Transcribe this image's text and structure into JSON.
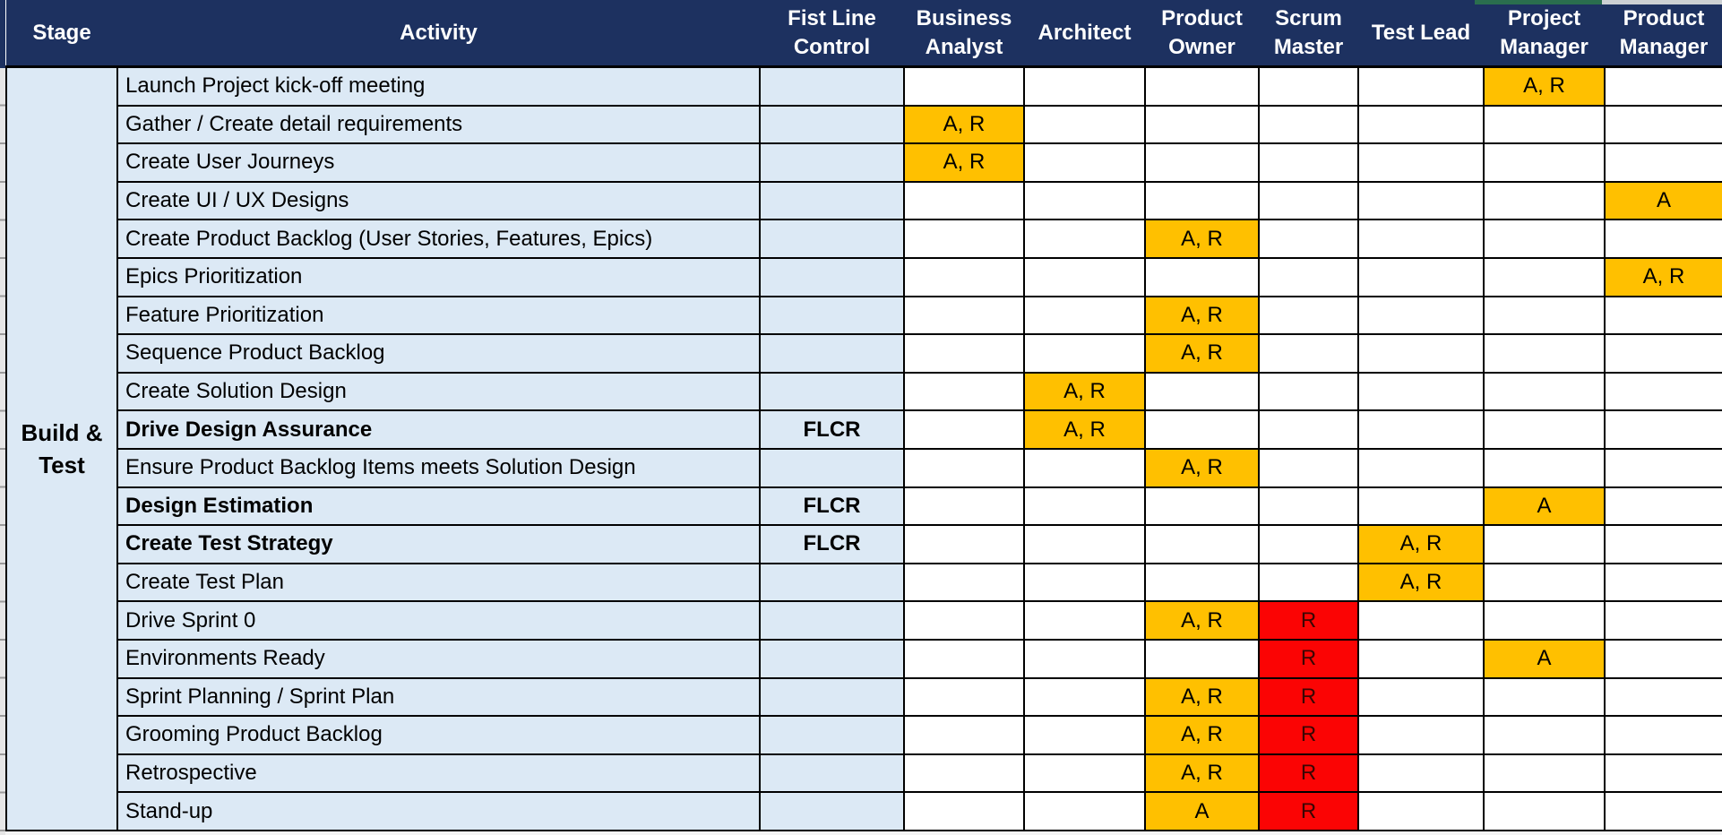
{
  "app": {
    "view": "raci-matrix-spreadsheet"
  },
  "colors": {
    "header_bg": "#1d3160",
    "header_text": "#ffffff",
    "row_tint": "#dce9f5",
    "gold": "#ffc000",
    "red": "#fb0404",
    "red_text": "#3a0603",
    "grid": "#000000",
    "selection_green": "#2a6e4e"
  },
  "table": {
    "header": {
      "stage": "Stage",
      "activity": "Activity",
      "roles": [
        "Fist Line Control",
        "Business Analyst",
        "Architect",
        "Product Owner",
        "Scrum Master",
        "Test Lead",
        "Project Manager",
        "Product Manager"
      ]
    },
    "role_keys": [
      "flc",
      "ba",
      "arch",
      "po",
      "sm",
      "tl",
      "pjm",
      "pdm"
    ],
    "stage_label": "Build &\nTest",
    "rows": [
      {
        "activity": "Launch Project kick-off meeting",
        "bold": false,
        "marks": {
          "pjm": {
            "text": "A, R",
            "bg": "gold"
          }
        }
      },
      {
        "activity": "Gather / Create detail requirements",
        "bold": false,
        "marks": {
          "ba": {
            "text": "A, R",
            "bg": "gold"
          }
        }
      },
      {
        "activity": "Create User Journeys",
        "bold": false,
        "marks": {
          "ba": {
            "text": "A, R",
            "bg": "gold"
          }
        }
      },
      {
        "activity": "Create UI / UX Designs",
        "bold": false,
        "marks": {
          "pdm": {
            "text": "A",
            "bg": "gold"
          }
        }
      },
      {
        "activity": "Create Product Backlog (User Stories, Features, Epics)",
        "bold": false,
        "marks": {
          "po": {
            "text": "A, R",
            "bg": "gold"
          }
        }
      },
      {
        "activity": "Epics Prioritization",
        "bold": false,
        "marks": {
          "pdm": {
            "text": "A, R",
            "bg": "gold"
          }
        }
      },
      {
        "activity": "Feature Prioritization",
        "bold": false,
        "marks": {
          "po": {
            "text": "A, R",
            "bg": "gold"
          }
        }
      },
      {
        "activity": "Sequence Product Backlog",
        "bold": false,
        "marks": {
          "po": {
            "text": "A, R",
            "bg": "gold"
          }
        }
      },
      {
        "activity": "Create Solution Design",
        "bold": false,
        "marks": {
          "arch": {
            "text": "A, R",
            "bg": "gold"
          }
        }
      },
      {
        "activity": "Drive Design Assurance",
        "bold": true,
        "marks": {
          "flc": {
            "text": "FLCR",
            "bg": ""
          },
          "arch": {
            "text": "A, R",
            "bg": "gold"
          }
        }
      },
      {
        "activity": "Ensure Product Backlog Items meets Solution Design",
        "bold": false,
        "marks": {
          "po": {
            "text": "A, R",
            "bg": "gold"
          }
        }
      },
      {
        "activity": "Design Estimation",
        "bold": true,
        "marks": {
          "flc": {
            "text": "FLCR",
            "bg": ""
          },
          "pjm": {
            "text": "A",
            "bg": "gold"
          }
        }
      },
      {
        "activity": "Create Test Strategy",
        "bold": true,
        "marks": {
          "flc": {
            "text": "FLCR",
            "bg": ""
          },
          "tl": {
            "text": "A, R",
            "bg": "gold"
          }
        }
      },
      {
        "activity": "Create Test Plan",
        "bold": false,
        "marks": {
          "tl": {
            "text": "A, R",
            "bg": "gold"
          }
        }
      },
      {
        "activity": "Drive Sprint 0",
        "bold": false,
        "marks": {
          "po": {
            "text": "A, R",
            "bg": "gold"
          },
          "sm": {
            "text": "R",
            "bg": "red"
          }
        }
      },
      {
        "activity": "Environments Ready",
        "bold": false,
        "marks": {
          "sm": {
            "text": "R",
            "bg": "red"
          },
          "pjm": {
            "text": "A",
            "bg": "gold"
          }
        }
      },
      {
        "activity": "Sprint Planning / Sprint Plan",
        "bold": false,
        "marks": {
          "po": {
            "text": "A, R",
            "bg": "gold"
          },
          "sm": {
            "text": "R",
            "bg": "red"
          }
        }
      },
      {
        "activity": "Grooming Product Backlog",
        "bold": false,
        "marks": {
          "po": {
            "text": "A, R",
            "bg": "gold"
          },
          "sm": {
            "text": "R",
            "bg": "red"
          }
        }
      },
      {
        "activity": "Retrospective",
        "bold": false,
        "marks": {
          "po": {
            "text": "A, R",
            "bg": "gold"
          },
          "sm": {
            "text": "R",
            "bg": "red"
          }
        }
      },
      {
        "activity": "Stand-up",
        "bold": false,
        "marks": {
          "po": {
            "text": "A",
            "bg": "gold"
          },
          "sm": {
            "text": "R",
            "bg": "red"
          }
        }
      }
    ]
  }
}
